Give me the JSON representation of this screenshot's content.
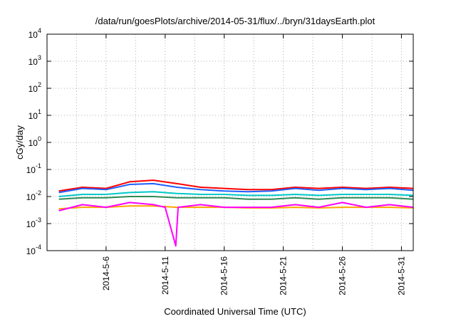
{
  "chart_data": {
    "type": "line",
    "title": "/data/run/goesPlots/archive/2014-05-31/flux/../bryn/31daysEarth.plot",
    "xlabel": "Coordinated Universal Time (UTC)",
    "ylabel": "cGy/day",
    "x_type": "date",
    "xlim": [
      "2014-05-01",
      "2014-06-01"
    ],
    "ylim": [
      0.0001,
      10000
    ],
    "yscale": "log",
    "grid": true,
    "legend": "none",
    "x_ticks": [
      "2014-5-6",
      "2014-5-11",
      "2014-5-16",
      "2014-5-21",
      "2014-5-26",
      "2014-5-31"
    ],
    "y_ticks": [
      {
        "base": "10",
        "exp": "-4",
        "value": 0.0001
      },
      {
        "base": "10",
        "exp": "-3",
        "value": 0.001
      },
      {
        "base": "10",
        "exp": "-2",
        "value": 0.01
      },
      {
        "base": "10",
        "exp": "-1",
        "value": 0.1
      },
      {
        "base": "10",
        "exp": "0",
        "value": 1
      },
      {
        "base": "10",
        "exp": "1",
        "value": 10
      },
      {
        "base": "10",
        "exp": "2",
        "value": 100
      },
      {
        "base": "10",
        "exp": "3",
        "value": 1000
      },
      {
        "base": "10",
        "exp": "4",
        "value": 10000
      }
    ],
    "series": [
      {
        "color": "#ff0000",
        "values": [
          [
            "2014-05-02",
            0.016
          ],
          [
            "2014-05-04",
            0.022
          ],
          [
            "2014-05-06",
            0.02
          ],
          [
            "2014-05-08",
            0.035
          ],
          [
            "2014-05-10",
            0.04
          ],
          [
            "2014-05-12",
            0.03
          ],
          [
            "2014-05-14",
            0.022
          ],
          [
            "2014-05-16",
            0.02
          ],
          [
            "2014-05-18",
            0.018
          ],
          [
            "2014-05-20",
            0.018
          ],
          [
            "2014-05-22",
            0.022
          ],
          [
            "2014-05-24",
            0.02
          ],
          [
            "2014-05-26",
            0.022
          ],
          [
            "2014-05-28",
            0.02
          ],
          [
            "2014-05-30",
            0.022
          ],
          [
            "2014-06-01",
            0.02
          ]
        ]
      },
      {
        "color": "#1f5fff",
        "values": [
          [
            "2014-05-02",
            0.014
          ],
          [
            "2014-05-04",
            0.02
          ],
          [
            "2014-05-06",
            0.018
          ],
          [
            "2014-05-08",
            0.028
          ],
          [
            "2014-05-10",
            0.03
          ],
          [
            "2014-05-12",
            0.022
          ],
          [
            "2014-05-14",
            0.018
          ],
          [
            "2014-05-16",
            0.016
          ],
          [
            "2014-05-18",
            0.015
          ],
          [
            "2014-05-20",
            0.016
          ],
          [
            "2014-05-22",
            0.02
          ],
          [
            "2014-05-24",
            0.017
          ],
          [
            "2014-05-26",
            0.02
          ],
          [
            "2014-05-28",
            0.018
          ],
          [
            "2014-05-30",
            0.02
          ],
          [
            "2014-06-01",
            0.017
          ]
        ]
      },
      {
        "color": "#00c8c8",
        "values": [
          [
            "2014-05-02",
            0.01
          ],
          [
            "2014-05-04",
            0.012
          ],
          [
            "2014-05-06",
            0.012
          ],
          [
            "2014-05-08",
            0.014
          ],
          [
            "2014-05-10",
            0.015
          ],
          [
            "2014-05-12",
            0.013
          ],
          [
            "2014-05-14",
            0.012
          ],
          [
            "2014-05-16",
            0.012
          ],
          [
            "2014-05-18",
            0.011
          ],
          [
            "2014-05-20",
            0.011
          ],
          [
            "2014-05-22",
            0.012
          ],
          [
            "2014-05-24",
            0.011
          ],
          [
            "2014-05-26",
            0.012
          ],
          [
            "2014-05-28",
            0.012
          ],
          [
            "2014-05-30",
            0.012
          ],
          [
            "2014-06-01",
            0.011
          ]
        ]
      },
      {
        "color": "#2e8b57",
        "values": [
          [
            "2014-05-02",
            0.008
          ],
          [
            "2014-05-04",
            0.009
          ],
          [
            "2014-05-06",
            0.009
          ],
          [
            "2014-05-08",
            0.01
          ],
          [
            "2014-05-10",
            0.01
          ],
          [
            "2014-05-12",
            0.009
          ],
          [
            "2014-05-14",
            0.009
          ],
          [
            "2014-05-16",
            0.009
          ],
          [
            "2014-05-18",
            0.008
          ],
          [
            "2014-05-20",
            0.008
          ],
          [
            "2014-05-22",
            0.009
          ],
          [
            "2014-05-24",
            0.008
          ],
          [
            "2014-05-26",
            0.009
          ],
          [
            "2014-05-28",
            0.009
          ],
          [
            "2014-05-30",
            0.009
          ],
          [
            "2014-06-01",
            0.008
          ]
        ]
      },
      {
        "color": "#ffa500",
        "values": [
          [
            "2014-05-02",
            0.0035
          ],
          [
            "2014-05-04",
            0.004
          ],
          [
            "2014-05-06",
            0.004
          ],
          [
            "2014-05-08",
            0.0045
          ],
          [
            "2014-05-10",
            0.0045
          ],
          [
            "2014-05-12",
            0.004
          ],
          [
            "2014-05-14",
            0.004
          ],
          [
            "2014-05-16",
            0.004
          ],
          [
            "2014-05-18",
            0.0038
          ],
          [
            "2014-05-20",
            0.0038
          ],
          [
            "2014-05-22",
            0.004
          ],
          [
            "2014-05-24",
            0.0038
          ],
          [
            "2014-05-26",
            0.004
          ],
          [
            "2014-05-28",
            0.004
          ],
          [
            "2014-05-30",
            0.004
          ],
          [
            "2014-06-01",
            0.0038
          ]
        ]
      },
      {
        "color": "#ff00ff",
        "values": [
          [
            "2014-05-02",
            0.003
          ],
          [
            "2014-05-04",
            0.005
          ],
          [
            "2014-05-06",
            0.004
          ],
          [
            "2014-05-08",
            0.006
          ],
          [
            "2014-05-10",
            0.005
          ],
          [
            "2014-05-11",
            0.004
          ],
          [
            "2014-05-11.9",
            0.00015
          ],
          [
            "2014-05-12.1",
            0.004
          ],
          [
            "2014-05-14",
            0.005
          ],
          [
            "2014-05-16",
            0.004
          ],
          [
            "2014-05-18",
            0.004
          ],
          [
            "2014-05-20",
            0.004
          ],
          [
            "2014-05-22",
            0.005
          ],
          [
            "2014-05-24",
            0.004
          ],
          [
            "2014-05-26",
            0.006
          ],
          [
            "2014-05-28",
            0.004
          ],
          [
            "2014-05-30",
            0.005
          ],
          [
            "2014-06-01",
            0.004
          ]
        ]
      }
    ]
  }
}
